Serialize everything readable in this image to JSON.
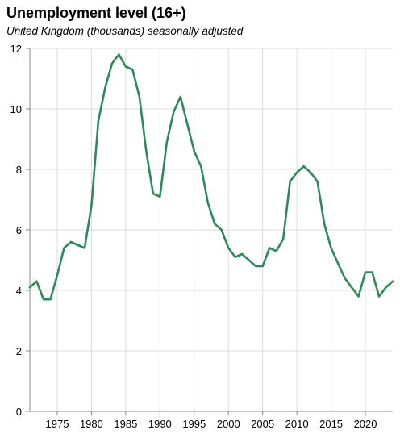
{
  "chart_data": {
    "type": "line",
    "title": "Unemployment level (16+)",
    "subtitle": "United Kingdom (thousands) seasonally adjusted",
    "xlabel": "",
    "ylabel": "",
    "xlim": [
      1971,
      2024
    ],
    "ylim": [
      0,
      12
    ],
    "x_ticks": [
      1975,
      1980,
      1985,
      1990,
      1995,
      2000,
      2005,
      2010,
      2015,
      2020
    ],
    "y_ticks": [
      0,
      2,
      4,
      6,
      8,
      10,
      12
    ],
    "grid": true,
    "line_color": "#2e8b57",
    "series": [
      {
        "x": [
          1971,
          1972,
          1973,
          1974,
          1975,
          1976,
          1977,
          1978,
          1979,
          1980,
          1981,
          1982,
          1983,
          1984,
          1985,
          1986,
          1987,
          1988,
          1989,
          1990,
          1991,
          1992,
          1993,
          1994,
          1995,
          1996,
          1997,
          1998,
          1999,
          2000,
          2001,
          2002,
          2003,
          2004,
          2005,
          2006,
          2007,
          2008,
          2009,
          2010,
          2011,
          2012,
          2013,
          2014,
          2015,
          2016,
          2017,
          2018,
          2019,
          2020,
          2021,
          2022,
          2023,
          2024
        ],
        "values": [
          4.1,
          4.3,
          3.7,
          3.7,
          4.5,
          5.4,
          5.6,
          5.5,
          5.4,
          6.8,
          9.6,
          10.7,
          11.5,
          11.8,
          11.4,
          11.3,
          10.4,
          8.6,
          7.2,
          7.1,
          8.9,
          9.9,
          10.4,
          9.5,
          8.6,
          8.1,
          6.9,
          6.2,
          6.0,
          5.4,
          5.1,
          5.2,
          5.0,
          4.8,
          4.8,
          5.4,
          5.3,
          5.7,
          7.6,
          7.9,
          8.1,
          7.9,
          7.6,
          6.2,
          5.4,
          4.9,
          4.4,
          4.1,
          3.8,
          4.6,
          4.6,
          3.8,
          4.1,
          4.3
        ]
      }
    ]
  }
}
